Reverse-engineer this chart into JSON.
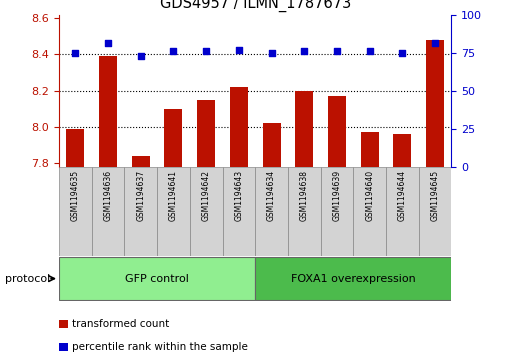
{
  "title": "GDS4957 / ILMN_1787673",
  "samples": [
    "GSM1194635",
    "GSM1194636",
    "GSM1194637",
    "GSM1194641",
    "GSM1194642",
    "GSM1194643",
    "GSM1194634",
    "GSM1194638",
    "GSM1194639",
    "GSM1194640",
    "GSM1194644",
    "GSM1194645"
  ],
  "transformed_count": [
    7.99,
    8.39,
    7.84,
    8.1,
    8.15,
    8.22,
    8.02,
    8.2,
    8.17,
    7.97,
    7.96,
    8.48
  ],
  "percentile_rank": [
    75,
    81,
    73,
    76,
    76,
    77,
    75,
    76,
    76,
    76,
    75,
    81
  ],
  "groups": [
    {
      "label": "GFP control",
      "start": 0,
      "end": 6,
      "color": "#90EE90"
    },
    {
      "label": "FOXA1 overexpression",
      "start": 6,
      "end": 12,
      "color": "#4CBB4C"
    }
  ],
  "ylim_left": [
    7.78,
    8.62
  ],
  "ylim_right": [
    0,
    100
  ],
  "yticks_left": [
    7.8,
    8.0,
    8.2,
    8.4,
    8.6
  ],
  "yticks_right": [
    0,
    25,
    50,
    75,
    100
  ],
  "bar_color": "#BB1100",
  "dot_color": "#0000CC",
  "bar_baseline": 7.78,
  "grid_lines": [
    8.0,
    8.2,
    8.4
  ],
  "background_color": "#FFFFFF",
  "plot_bg": "#FFFFFF",
  "protocol_label": "protocol",
  "legend_items": [
    {
      "label": "transformed count",
      "color": "#BB1100"
    },
    {
      "label": "percentile rank within the sample",
      "color": "#0000CC"
    }
  ]
}
